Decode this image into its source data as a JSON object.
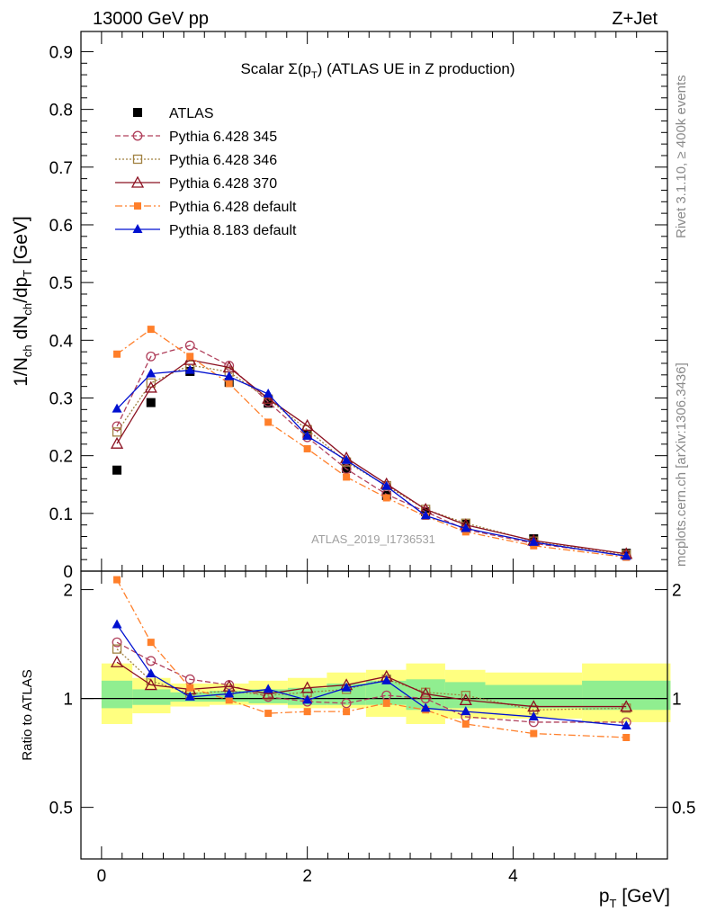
{
  "header": {
    "left": "13000 GeV pp",
    "right": "Z+Jet"
  },
  "side_labels": {
    "rivet": "Rivet 3.1.10, ≥ 400k events",
    "mcplots": "mcplots.cern.ch [arXiv:1306.3436]"
  },
  "watermark": "ATLAS_2019_I1736531",
  "colors": {
    "atlas": "#000000",
    "p345": "#b0405c",
    "p346": "#a08040",
    "p370": "#8b1020",
    "p6def": "#ff7f2a",
    "p8def": "#0010d0",
    "band_inner": "#90ee90",
    "band_outer": "#ffff80"
  },
  "chart_data": [
    {
      "type": "line",
      "title_prefix": "Scalar Σ(p",
      "title_sub": "T",
      "title_suffix": ") (ATLAS UE in Z production)",
      "ylabel": "1/N_ch dN_ch/dp_T [GeV]",
      "xlim": [
        -0.2,
        5.5
      ],
      "ylim": [
        0,
        0.935
      ],
      "yticks": [
        0,
        0.1,
        0.2,
        0.3,
        0.4,
        0.5,
        0.6,
        0.7,
        0.8,
        0.9
      ],
      "ytick_labels": [
        "0",
        "0.1",
        "0.2",
        "0.3",
        "0.4",
        "0.5",
        "0.6",
        "0.7",
        "0.8",
        "0.9"
      ],
      "x": [
        0.15,
        0.48,
        0.86,
        1.24,
        1.62,
        2.0,
        2.38,
        2.77,
        3.15,
        3.54,
        4.2,
        5.1
      ],
      "series": [
        {
          "name": "ATLAS",
          "key": "atlas",
          "marker": "square",
          "line": "none",
          "values": [
            0.175,
            0.292,
            0.346,
            0.327,
            0.291,
            0.236,
            0.178,
            0.131,
            0.103,
            0.081,
            0.056,
            0.031
          ]
        },
        {
          "name": "Pythia 6.428 345",
          "key": "p345",
          "marker": "circle-open",
          "line": "dashed",
          "values": [
            0.251,
            0.372,
            0.391,
            0.356,
            0.293,
            0.232,
            0.177,
            0.133,
            0.103,
            0.072,
            0.048,
            0.027
          ]
        },
        {
          "name": "Pythia 6.428 346",
          "key": "p346",
          "marker": "square-open",
          "line": "dotted",
          "values": [
            0.241,
            0.326,
            0.357,
            0.345,
            0.298,
            0.245,
            0.189,
            0.148,
            0.107,
            0.083,
            0.052,
            0.029
          ]
        },
        {
          "name": "Pythia 6.428 370",
          "key": "p370",
          "marker": "triangle-open",
          "line": "solid",
          "values": [
            0.221,
            0.318,
            0.366,
            0.353,
            0.299,
            0.252,
            0.196,
            0.151,
            0.107,
            0.08,
            0.053,
            0.03
          ]
        },
        {
          "name": "Pythia 6.428 default",
          "key": "p6def",
          "marker": "square-small",
          "line": "dashdot",
          "values": [
            0.376,
            0.419,
            0.372,
            0.325,
            0.258,
            0.212,
            0.163,
            0.127,
            0.095,
            0.068,
            0.044,
            0.024
          ]
        },
        {
          "name": "Pythia 8.183 default",
          "key": "p8def",
          "marker": "triangle",
          "line": "solid",
          "values": [
            0.281,
            0.342,
            0.348,
            0.337,
            0.307,
            0.234,
            0.192,
            0.147,
            0.096,
            0.074,
            0.05,
            0.026
          ]
        }
      ]
    },
    {
      "type": "line",
      "ylabel": "Ratio to ATLAS",
      "xlabel": "p_T [GeV]",
      "yscale": "log",
      "xlim": [
        -0.2,
        5.5
      ],
      "ylim": [
        0.36,
        2.25
      ],
      "xticks": [
        0,
        2,
        4
      ],
      "xtick_labels": [
        "0",
        "2",
        "4"
      ],
      "yticks": [
        0.5,
        1,
        2
      ],
      "ytick_labels": [
        "0.5",
        "1",
        "2"
      ],
      "bins": [
        [
          0.0,
          0.3
        ],
        [
          0.3,
          0.67
        ],
        [
          0.67,
          1.05
        ],
        [
          1.05,
          1.43
        ],
        [
          1.43,
          1.81
        ],
        [
          1.81,
          2.19
        ],
        [
          2.19,
          2.57
        ],
        [
          2.57,
          2.96
        ],
        [
          2.96,
          3.34
        ],
        [
          3.34,
          3.73
        ],
        [
          3.73,
          4.67
        ],
        [
          4.67,
          5.53
        ]
      ],
      "band_inner": [
        [
          0.94,
          1.12
        ],
        [
          0.96,
          1.06
        ],
        [
          0.98,
          1.04
        ],
        [
          0.98,
          1.05
        ],
        [
          0.97,
          1.06
        ],
        [
          0.96,
          1.07
        ],
        [
          0.96,
          1.1
        ],
        [
          0.96,
          1.12
        ],
        [
          0.93,
          1.13
        ],
        [
          0.94,
          1.11
        ],
        [
          0.94,
          1.09
        ],
        [
          0.93,
          1.12
        ]
      ],
      "band_outer": [
        [
          0.85,
          1.25
        ],
        [
          0.91,
          1.14
        ],
        [
          0.95,
          1.1
        ],
        [
          0.96,
          1.1
        ],
        [
          0.96,
          1.12
        ],
        [
          0.94,
          1.14
        ],
        [
          0.94,
          1.18
        ],
        [
          0.89,
          1.2
        ],
        [
          0.85,
          1.25
        ],
        [
          0.88,
          1.2
        ],
        [
          0.88,
          1.18
        ],
        [
          0.86,
          1.25
        ]
      ],
      "series": [
        {
          "name": "Pythia 6.428 345",
          "key": "p345",
          "values": [
            1.43,
            1.27,
            1.13,
            1.09,
            1.01,
            0.98,
            0.97,
            1.02,
            1.0,
            0.89,
            0.86,
            0.86
          ]
        },
        {
          "name": "Pythia 6.428 346",
          "key": "p346",
          "values": [
            1.37,
            1.12,
            1.03,
            1.05,
            1.02,
            1.04,
            1.06,
            1.13,
            1.04,
            1.02,
            0.93,
            0.94
          ]
        },
        {
          "name": "Pythia 6.428 370",
          "key": "p370",
          "values": [
            1.26,
            1.09,
            1.06,
            1.08,
            1.03,
            1.07,
            1.09,
            1.15,
            1.03,
            0.99,
            0.95,
            0.95
          ]
        },
        {
          "name": "Pythia 6.428 default",
          "key": "p6def",
          "values": [
            2.13,
            1.43,
            1.07,
            0.99,
            0.91,
            0.92,
            0.92,
            0.97,
            0.93,
            0.85,
            0.8,
            0.78
          ]
        },
        {
          "name": "Pythia 8.183 default",
          "key": "p8def",
          "values": [
            1.6,
            1.17,
            1.01,
            1.03,
            1.06,
            0.99,
            1.07,
            1.12,
            0.94,
            0.92,
            0.89,
            0.84
          ]
        }
      ]
    }
  ]
}
